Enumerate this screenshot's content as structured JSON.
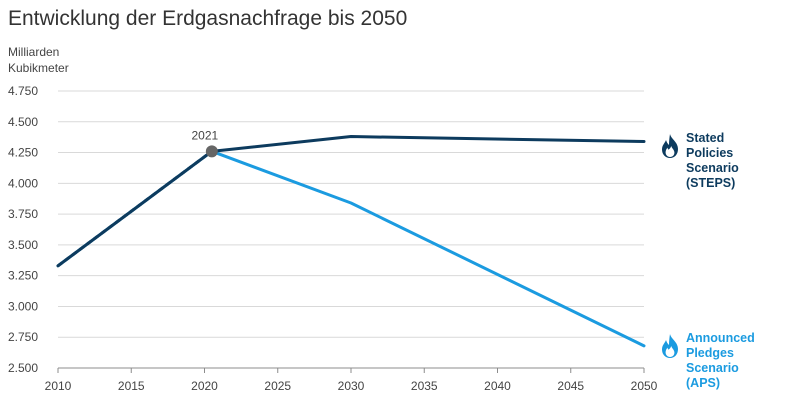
{
  "chart_data": {
    "type": "line",
    "title": "Entwicklung der Erdgasnachfrage bis 2050",
    "ylabel_lines": [
      "Milliarden",
      "Kubikmeter"
    ],
    "xlim": [
      2010,
      2050
    ],
    "ylim": [
      2500,
      4750
    ],
    "x_ticks": [
      2010,
      2015,
      2020,
      2025,
      2030,
      2035,
      2040,
      2045,
      2050
    ],
    "y_ticks": [
      2500,
      2750,
      3000,
      3250,
      3500,
      3750,
      4000,
      4250,
      4500,
      4750
    ],
    "y_tick_labels": [
      "2.500",
      "2.750",
      "3.000",
      "3.250",
      "3.500",
      "3.750",
      "4.000",
      "4.250",
      "4.500",
      "4.750"
    ],
    "annotation": {
      "x": 2020.5,
      "y": 4260,
      "label": "2021"
    },
    "series": [
      {
        "key": "steps",
        "label_lines": [
          "Stated",
          "Policies Scenario",
          "(STEPS)"
        ],
        "color": "#0d3b5e",
        "x": [
          2010,
          2020.5,
          2030,
          2050
        ],
        "y": [
          3330,
          4260,
          4380,
          4340
        ]
      },
      {
        "key": "aps",
        "label_lines": [
          "Announced",
          "Pledges Scenario",
          "(APS)"
        ],
        "color": "#1b9be0",
        "x": [
          2010,
          2020.5,
          2030,
          2050
        ],
        "y": [
          3330,
          4260,
          3840,
          2680
        ]
      }
    ]
  },
  "icons": {
    "legend_marker": "flame-icon"
  }
}
